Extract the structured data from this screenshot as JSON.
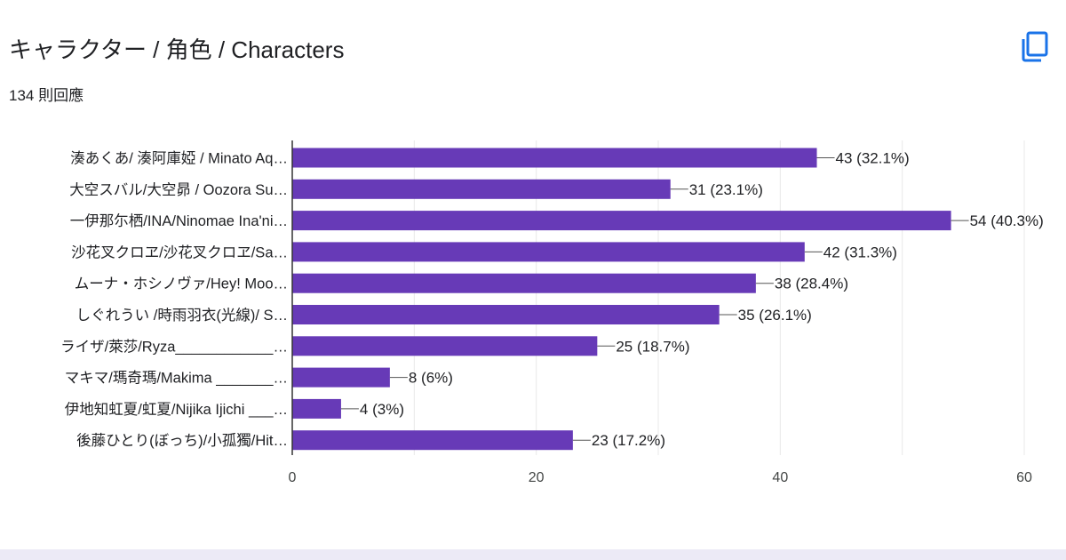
{
  "header": {
    "title": "キャラクター / 角色 / Characters",
    "response_count": "134 則回應",
    "copy_icon": "copy-icon"
  },
  "colors": {
    "bar": "#673ab7",
    "grid": "#e8e8e8",
    "axis": "#333333",
    "leader": "#555555"
  },
  "chart_data": {
    "type": "bar",
    "orientation": "horizontal",
    "categories": [
      "湊あくあ/ 湊阿庫婭 / Minato Aq…",
      "大空スバル/大空昴 / Oozora Su…",
      "一伊那尓栖/INA/Ninomae Ina'ni…",
      "沙花叉クロヱ/沙花叉クロヱ/Sa…",
      "ムーナ・ホシノヴァ/Hey! Moo…",
      "しぐれうい /時雨羽衣(光線)/ S…",
      "ライザ/萊莎/Ryza____________…",
      "マキマ/瑪奇瑪/Makima _______…",
      "伊地知虹夏/虹夏/Nijika Ijichi ___…",
      "後藤ひとり(ぼっち)/小孤獨/Hit…"
    ],
    "values": [
      43,
      31,
      54,
      42,
      38,
      35,
      25,
      8,
      4,
      23
    ],
    "value_labels": [
      "43 (32.1%)",
      "31 (23.1%)",
      "54 (40.3%)",
      "42 (31.3%)",
      "38 (28.4%)",
      "35 (26.1%)",
      "25 (18.7%)",
      "8 (6%)",
      "4 (3%)",
      "23 (17.2%)"
    ],
    "xlim": [
      0,
      60
    ],
    "xticks": [
      "0",
      "20",
      "40",
      "60"
    ],
    "xtick_values": [
      0,
      20,
      40,
      60
    ],
    "gridlines": [
      0,
      10,
      20,
      30,
      40,
      50,
      60
    ],
    "grid": true,
    "legend": "none"
  }
}
